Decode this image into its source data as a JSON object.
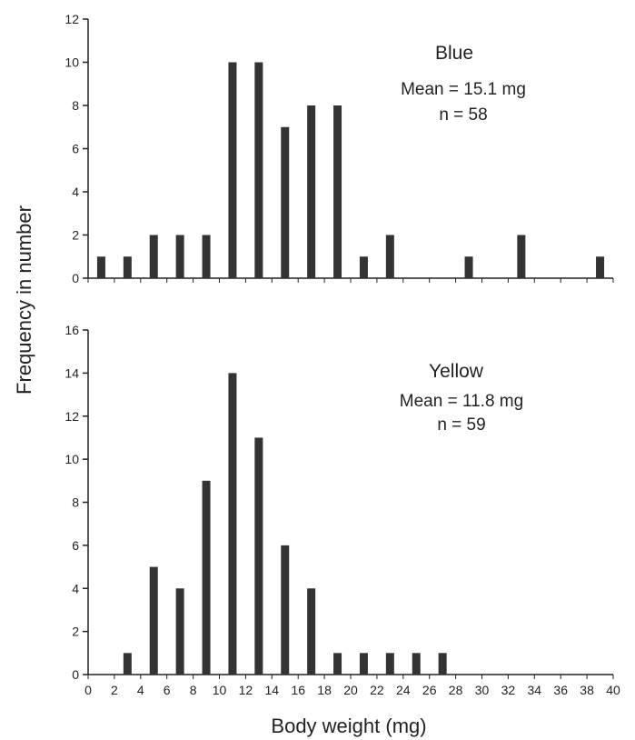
{
  "ylabel": "Frequency in number",
  "xlabel": "Body weight (mg)",
  "chart_data": [
    {
      "type": "bar",
      "title": "Blue",
      "annotations": [
        "Mean = 15.1 mg",
        "n = 58"
      ],
      "x": [
        1,
        3,
        5,
        7,
        9,
        11,
        13,
        15,
        17,
        19,
        21,
        23,
        29,
        33,
        39
      ],
      "values": [
        1,
        1,
        2,
        2,
        2,
        10,
        10,
        7,
        8,
        8,
        1,
        2,
        1,
        2,
        1
      ],
      "xlim": [
        0,
        40
      ],
      "ylim": [
        0,
        12
      ],
      "yticks": [
        0,
        2,
        4,
        6,
        8,
        10,
        12
      ],
      "color": "#333333"
    },
    {
      "type": "bar",
      "title": "Yellow",
      "annotations": [
        "Mean = 11.8 mg",
        "n = 59"
      ],
      "x": [
        3,
        5,
        7,
        9,
        11,
        13,
        15,
        17,
        19,
        21,
        23,
        25,
        27
      ],
      "values": [
        1,
        5,
        4,
        9,
        14,
        11,
        6,
        4,
        1,
        1,
        1,
        1,
        1
      ],
      "xlim": [
        0,
        40
      ],
      "ylim": [
        0,
        16
      ],
      "yticks": [
        0,
        2,
        4,
        6,
        8,
        10,
        12,
        14,
        16
      ],
      "xticks": [
        0,
        2,
        4,
        6,
        8,
        10,
        12,
        14,
        16,
        18,
        20,
        22,
        24,
        26,
        28,
        30,
        32,
        34,
        36,
        38,
        40
      ],
      "color": "#333333"
    }
  ]
}
